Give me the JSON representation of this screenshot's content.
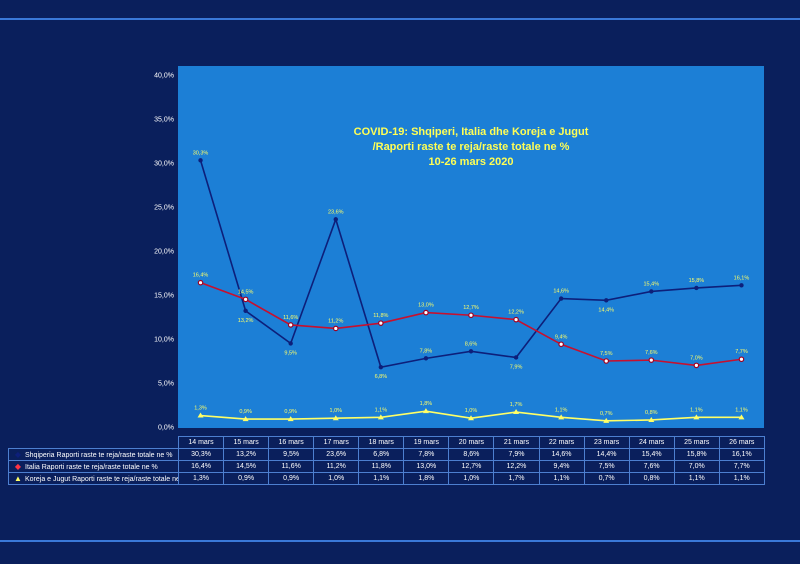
{
  "chart_data": {
    "type": "line",
    "title_lines": [
      "COVID-19: Shqiperi, Italia dhe Koreja e Jugut",
      "/Raporti raste te reja/raste totale ne %",
      "10-26 mars 2020"
    ],
    "categories": [
      "14 mars",
      "15 mars",
      "16 mars",
      "17 mars",
      "18 mars",
      "19 mars",
      "20 mars",
      "21 mars",
      "22 mars",
      "23 mars",
      "24 mars",
      "25 mars",
      "26 mars"
    ],
    "y_ticks": [
      "0,0%",
      "5,0%",
      "10,0%",
      "15,0%",
      "20,0%",
      "25,0%",
      "30,0%",
      "35,0%",
      "40,0%"
    ],
    "ylim": [
      0,
      40
    ],
    "series": [
      {
        "name": "Shqiperia Raporti raste te reja/raste totale ne %",
        "color": "#0d1f7a",
        "marker_color": "#0d1f7a",
        "values": [
          30.3,
          13.2,
          9.5,
          23.6,
          6.8,
          7.8,
          8.6,
          7.9,
          14.6,
          14.4,
          15.4,
          15.8,
          16.1
        ],
        "labels": [
          "30,3%",
          "13,2%",
          "9,5%",
          "23,6%",
          "6,8%",
          "7,8%",
          "8,6%",
          "7,9%",
          "14,6%",
          "14,4%",
          "15,4%",
          "15,8%",
          "16,1%"
        ],
        "legend_marker": "◆"
      },
      {
        "name": "Italia Raporti raste te reja/raste totale ne %",
        "color": "#c8102e",
        "marker_color": "#a00020",
        "values": [
          16.4,
          14.5,
          11.6,
          11.2,
          11.8,
          13.0,
          12.7,
          12.2,
          9.4,
          7.5,
          7.6,
          7.0,
          7.7
        ],
        "labels": [
          "16,4%",
          "14,5%",
          "11,6%",
          "11,2%",
          "11,8%",
          "13,0%",
          "12,7%",
          "12,2%",
          "9,4%",
          "7,5%",
          "7,6%",
          "7,0%",
          "7,7%"
        ],
        "legend_marker": "◆"
      },
      {
        "name": "Koreja e Jugut Raporti raste te reja/raste totale ne %",
        "color": "#ffff66",
        "marker_color": "#ffff66",
        "values": [
          1.3,
          0.9,
          0.9,
          1.0,
          1.1,
          1.8,
          1.0,
          1.7,
          1.1,
          0.7,
          0.8,
          1.1,
          1.1
        ],
        "labels": [
          "1,3%",
          "0,9%",
          "0,9%",
          "1,0%",
          "1,1%",
          "1,8%",
          "1,0%",
          "1,7%",
          "1,1%",
          "0,7%",
          "0,8%",
          "1,1%",
          "1,1%"
        ],
        "legend_marker": "▲"
      }
    ]
  }
}
